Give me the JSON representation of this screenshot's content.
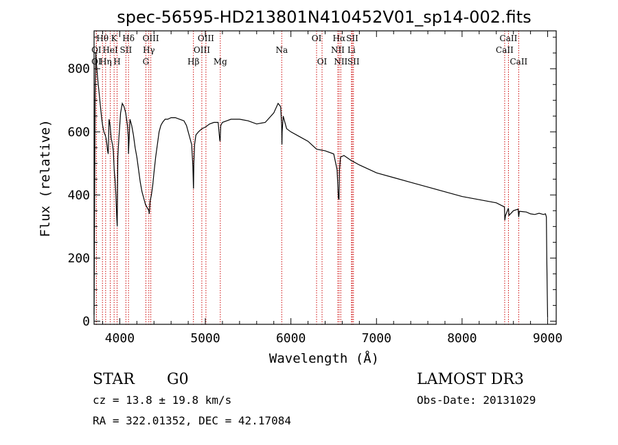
{
  "chart_data": {
    "type": "line",
    "title": "spec-56595-HD213801N410452V01_sp14-002.fits",
    "xlabel": "Wavelength (Å)",
    "ylabel": "Flux (relative)",
    "xlim": [
      3700,
      9100
    ],
    "ylim": [
      -10,
      920
    ],
    "xticks": [
      4000,
      5000,
      6000,
      7000,
      8000,
      9000
    ],
    "yticks": [
      0,
      200,
      400,
      600,
      800
    ],
    "series": [
      {
        "name": "flux",
        "x": [
          3700,
          3705,
          3712,
          3720,
          3730,
          3745,
          3760,
          3775,
          3790,
          3800,
          3815,
          3830,
          3840,
          3850,
          3858,
          3865,
          3875,
          3888,
          3900,
          3915,
          3925,
          3935,
          3945,
          3955,
          3965,
          3970,
          3978,
          3990,
          4000,
          4010,
          4030,
          4050,
          4070,
          4090,
          4100,
          4102,
          4120,
          4140,
          4160,
          4180,
          4200,
          4220,
          4240,
          4260,
          4280,
          4300,
          4320,
          4340,
          4345,
          4355,
          4370,
          4385,
          4400,
          4420,
          4440,
          4460,
          4480,
          4500,
          4530,
          4560,
          4600,
          4650,
          4700,
          4750,
          4780,
          4800,
          4820,
          4840,
          4855,
          4860,
          4862,
          4866,
          4875,
          4890,
          4920,
          4960,
          5000,
          5050,
          5100,
          5150,
          5168,
          5172,
          5180,
          5200,
          5250,
          5300,
          5400,
          5500,
          5600,
          5700,
          5800,
          5850,
          5880,
          5892,
          5895,
          5898,
          5910,
          5950,
          6000,
          6100,
          6200,
          6300,
          6400,
          6500,
          6540,
          6555,
          6562,
          6568,
          6580,
          6620,
          6700,
          6800,
          7000,
          7200,
          7400,
          7600,
          7800,
          8000,
          8200,
          8400,
          8495,
          8500,
          8508,
          8540,
          8542,
          8548,
          8600,
          8655,
          8662,
          8670,
          8750,
          8800,
          8850,
          8900,
          8950,
          8975,
          8985,
          8990,
          8995,
          9000
        ],
        "y": [
          20,
          300,
          720,
          850,
          810,
          760,
          720,
          680,
          640,
          620,
          600,
          590,
          580,
          560,
          540,
          530,
          640,
          620,
          580,
          560,
          540,
          480,
          450,
          400,
          330,
          300,
          520,
          580,
          620,
          660,
          690,
          680,
          660,
          620,
          580,
          530,
          640,
          620,
          590,
          550,
          520,
          480,
          440,
          410,
          390,
          370,
          360,
          350,
          340,
          380,
          400,
          430,
          470,
          520,
          560,
          600,
          620,
          630,
          640,
          640,
          645,
          645,
          640,
          635,
          620,
          600,
          580,
          560,
          490,
          430,
          420,
          500,
          560,
          590,
          600,
          610,
          615,
          625,
          630,
          630,
          575,
          570,
          620,
          630,
          635,
          640,
          640,
          635,
          625,
          630,
          660,
          690,
          680,
          620,
          560,
          600,
          650,
          610,
          600,
          585,
          570,
          545,
          540,
          530,
          480,
          390,
          385,
          480,
          520,
          525,
          510,
          495,
          470,
          455,
          440,
          425,
          410,
          395,
          385,
          375,
          362,
          320,
          335,
          357,
          357,
          335,
          350,
          355,
          330,
          348,
          346,
          340,
          338,
          342,
          338,
          340,
          330,
          200,
          100,
          10
        ]
      }
    ],
    "spectral_lines": [
      {
        "label": "Hθ",
        "x": 3798,
        "row": 1
      },
      {
        "label": "K",
        "x": 3934,
        "row": 1
      },
      {
        "label": "Hδ",
        "x": 4102,
        "row": 1
      },
      {
        "label": "OIII",
        "x": 4363,
        "row": 1
      },
      {
        "label": "OIII",
        "x": 5007,
        "row": 1
      },
      {
        "label": "OI",
        "x": 6300,
        "row": 1
      },
      {
        "label": "Hα",
        "x": 6563,
        "row": 1
      },
      {
        "label": "SII",
        "x": 6717,
        "row": 1
      },
      {
        "label": "CaII",
        "x": 8542,
        "row": 1
      },
      {
        "label": "OI",
        "x": 3727,
        "row": 2
      },
      {
        "label": "HeI",
        "x": 3889,
        "row": 2
      },
      {
        "label": "SII",
        "x": 4072,
        "row": 2
      },
      {
        "label": "Hγ",
        "x": 4340,
        "row": 2
      },
      {
        "label": "OIII",
        "x": 4959,
        "row": 2
      },
      {
        "label": "Na",
        "x": 5893,
        "row": 2
      },
      {
        "label": "NII",
        "x": 6548,
        "row": 2
      },
      {
        "label": "Li",
        "x": 6708,
        "row": 2
      },
      {
        "label": "CaII",
        "x": 8498,
        "row": 2
      },
      {
        "label": "OI",
        "x": 3727,
        "row": 3
      },
      {
        "label": "Hη",
        "x": 3835,
        "row": 3
      },
      {
        "label": "H",
        "x": 3969,
        "row": 3
      },
      {
        "label": "G",
        "x": 4305,
        "row": 3
      },
      {
        "label": "Hβ",
        "x": 4861,
        "row": 3
      },
      {
        "label": "Mg",
        "x": 5175,
        "row": 3
      },
      {
        "label": "OI",
        "x": 6364,
        "row": 3
      },
      {
        "label": "NII",
        "x": 6583,
        "row": 3
      },
      {
        "label": "SII",
        "x": 6731,
        "row": 3
      },
      {
        "label": "CaII",
        "x": 8662,
        "row": 3
      }
    ]
  },
  "footer": {
    "object_type": "STAR",
    "subclass": "G0",
    "survey": "LAMOST DR3",
    "cz": "cz = 13.8 ± 19.8 km/s",
    "obs_date": "Obs-Date: 20131029",
    "coords": "RA = 322.01352, DEC =  42.17084"
  },
  "colors": {
    "line_marker": "#cc0000",
    "spectrum": "#000000"
  }
}
